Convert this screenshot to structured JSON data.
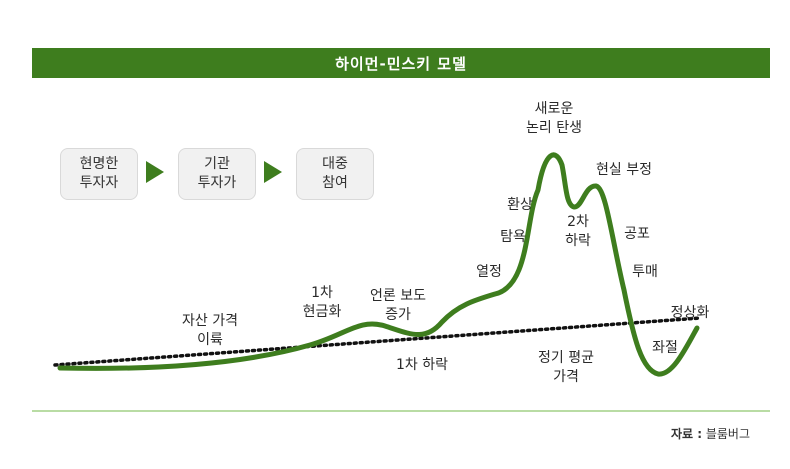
{
  "title": "하이먼-민스키 모델",
  "stages": [
    {
      "line1": "현명한",
      "line2": "투자자"
    },
    {
      "line1": "기관",
      "line2": "투자가"
    },
    {
      "line1": "대중",
      "line2": "참여"
    }
  ],
  "labels": {
    "asset_rise": [
      "자산 가격",
      "이륙"
    ],
    "cash_out_1": [
      "1차",
      "현금화"
    ],
    "media": [
      "언론 보도",
      "증가"
    ],
    "drop_1": "1차 하락",
    "enthusiasm": "열정",
    "greed": "탐욕",
    "illusion": "환상",
    "new_paradigm": [
      "새로운",
      "논리 탄생"
    ],
    "drop_2": [
      "2차",
      "하락"
    ],
    "denial": "현실 부정",
    "fear": "공포",
    "capitulation": "투매",
    "despair": "좌절",
    "normalization": "정상화",
    "mean": [
      "정기 평균",
      "가격"
    ]
  },
  "source": {
    "label": "자료 :",
    "name": "블룸버그"
  },
  "colors": {
    "accent": "#3e7d1e",
    "baseline": "#b9dca4"
  }
}
